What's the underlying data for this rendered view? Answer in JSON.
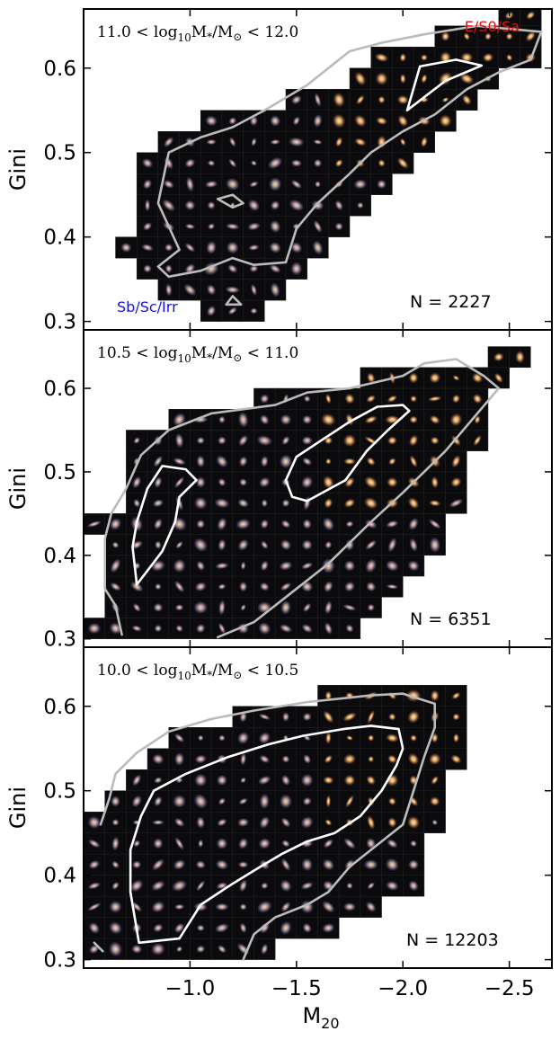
{
  "figure": {
    "xlabel": "M20",
    "ylabel": "Gini"
  },
  "chart_data": [
    {
      "type": "heatmap",
      "mass_range": "11.0 < log10 M*/M⊙ < 12.0",
      "count_label": "N = 2227",
      "late_type_label": "Sb/Sc/Irr",
      "early_type_label": "E/S0/Sa",
      "xlabel": "",
      "ylabel": "Gini",
      "xlim": [
        -0.5,
        -2.7
      ],
      "ylim": [
        0.29,
        0.67
      ],
      "x_ticks": [
        -1.0,
        -1.5,
        -2.0,
        -2.5
      ],
      "y_ticks": [
        0.3,
        0.4,
        0.5,
        0.6
      ],
      "bin_size": {
        "m20": 0.1,
        "gini": 0.025
      },
      "columns": [
        {
          "m20": -0.7,
          "gini_range": [
            0.375,
            0.4
          ]
        },
        {
          "m20": -0.8,
          "gini_range": [
            0.35,
            0.5
          ]
        },
        {
          "m20": -0.9,
          "gini_range": [
            0.325,
            0.525
          ]
        },
        {
          "m20": -1.0,
          "gini_range": [
            0.325,
            0.525
          ]
        },
        {
          "m20": -1.1,
          "gini_range": [
            0.3,
            0.55
          ]
        },
        {
          "m20": -1.2,
          "gini_range": [
            0.3,
            0.55
          ]
        },
        {
          "m20": -1.3,
          "gini_range": [
            0.3,
            0.55
          ]
        },
        {
          "m20": -1.4,
          "gini_range": [
            0.325,
            0.55
          ]
        },
        {
          "m20": -1.5,
          "gini_range": [
            0.35,
            0.575
          ]
        },
        {
          "m20": -1.6,
          "gini_range": [
            0.375,
            0.575
          ]
        },
        {
          "m20": -1.7,
          "gini_range": [
            0.4,
            0.575
          ]
        },
        {
          "m20": -1.8,
          "gini_range": [
            0.425,
            0.6
          ]
        },
        {
          "m20": -1.9,
          "gini_range": [
            0.45,
            0.625
          ]
        },
        {
          "m20": -2.0,
          "gini_range": [
            0.475,
            0.625
          ]
        },
        {
          "m20": -2.1,
          "gini_range": [
            0.5,
            0.625
          ]
        },
        {
          "m20": -2.2,
          "gini_range": [
            0.525,
            0.65
          ]
        },
        {
          "m20": -2.3,
          "gini_range": [
            0.55,
            0.65
          ]
        },
        {
          "m20": -2.4,
          "gini_range": [
            0.575,
            0.65
          ]
        },
        {
          "m20": -2.5,
          "gini_range": [
            0.6,
            0.675
          ]
        },
        {
          "m20": -2.6,
          "gini_range": [
            0.6,
            0.675
          ]
        }
      ],
      "contours": [
        {
          "level": "outer",
          "color": "#bbbbbb",
          "points": [
            [
              -1.35,
              0.55
            ],
            [
              -1.55,
              0.58
            ],
            [
              -1.65,
              0.6
            ],
            [
              -1.75,
              0.62
            ],
            [
              -1.9,
              0.63
            ],
            [
              -2.1,
              0.64
            ],
            [
              -2.35,
              0.65
            ],
            [
              -2.65,
              0.643
            ],
            [
              -2.6,
              0.61
            ],
            [
              -2.45,
              0.595
            ],
            [
              -2.3,
              0.575
            ],
            [
              -2.15,
              0.545
            ],
            [
              -2.0,
              0.525
            ],
            [
              -1.85,
              0.5
            ],
            [
              -1.75,
              0.475
            ],
            [
              -1.6,
              0.44
            ],
            [
              -1.5,
              0.41
            ],
            [
              -1.45,
              0.37
            ],
            [
              -1.3,
              0.367
            ],
            [
              -1.2,
              0.375
            ],
            [
              -1.05,
              0.36
            ],
            [
              -0.9,
              0.353
            ],
            [
              -0.85,
              0.365
            ],
            [
              -0.95,
              0.385
            ],
            [
              -0.85,
              0.44
            ],
            [
              -0.9,
              0.5
            ],
            [
              -1.05,
              0.518
            ],
            [
              -1.2,
              0.53
            ],
            [
              -1.35,
              0.55
            ]
          ]
        },
        {
          "level": "inner",
          "color": "#ffffff",
          "points": [
            [
              -2.02,
              0.55
            ],
            [
              -2.08,
              0.602
            ],
            [
              -2.25,
              0.61
            ],
            [
              -2.37,
              0.603
            ],
            [
              -2.2,
              0.585
            ],
            [
              -2.02,
              0.55
            ]
          ]
        },
        {
          "level": "outer",
          "color": "#bbbbbb",
          "points": [
            [
              -1.13,
              0.445
            ],
            [
              -1.2,
              0.435
            ],
            [
              -1.25,
              0.44
            ],
            [
              -1.2,
              0.45
            ],
            [
              -1.13,
              0.445
            ]
          ]
        },
        {
          "level": "outer",
          "color": "#bbbbbb",
          "points": [
            [
              -1.17,
              0.32
            ],
            [
              -1.2,
              0.33
            ],
            [
              -1.24,
              0.32
            ],
            [
              -1.17,
              0.32
            ]
          ]
        }
      ]
    },
    {
      "type": "heatmap",
      "mass_range": "10.5 < log10 M*/M⊙ < 11.0",
      "count_label": "N = 6351",
      "xlabel": "",
      "ylabel": "Gini",
      "xlim": [
        -0.5,
        -2.7
      ],
      "ylim": [
        0.29,
        0.67
      ],
      "x_ticks": [
        -1.0,
        -1.5,
        -2.0,
        -2.5
      ],
      "y_ticks": [
        0.3,
        0.4,
        0.5,
        0.6
      ],
      "bin_size": {
        "m20": 0.1,
        "gini": 0.025
      },
      "columns": [
        {
          "m20": -0.55,
          "gini_range": [
            0.3,
            0.325
          ]
        },
        {
          "m20": -0.55,
          "gini_range": [
            0.425,
            0.45
          ]
        },
        {
          "m20": -0.65,
          "gini_range": [
            0.3,
            0.45
          ]
        },
        {
          "m20": -0.75,
          "gini_range": [
            0.3,
            0.55
          ]
        },
        {
          "m20": -0.85,
          "gini_range": [
            0.3,
            0.55
          ]
        },
        {
          "m20": -0.95,
          "gini_range": [
            0.3,
            0.575
          ]
        },
        {
          "m20": -1.05,
          "gini_range": [
            0.3,
            0.575
          ]
        },
        {
          "m20": -1.15,
          "gini_range": [
            0.3,
            0.575
          ]
        },
        {
          "m20": -1.25,
          "gini_range": [
            0.3,
            0.575
          ]
        },
        {
          "m20": -1.35,
          "gini_range": [
            0.3,
            0.6
          ]
        },
        {
          "m20": -1.45,
          "gini_range": [
            0.3,
            0.6
          ]
        },
        {
          "m20": -1.55,
          "gini_range": [
            0.3,
            0.6
          ]
        },
        {
          "m20": -1.65,
          "gini_range": [
            0.3,
            0.6
          ]
        },
        {
          "m20": -1.75,
          "gini_range": [
            0.3,
            0.6
          ]
        },
        {
          "m20": -1.85,
          "gini_range": [
            0.325,
            0.625
          ]
        },
        {
          "m20": -1.95,
          "gini_range": [
            0.35,
            0.625
          ]
        },
        {
          "m20": -2.05,
          "gini_range": [
            0.375,
            0.625
          ]
        },
        {
          "m20": -2.15,
          "gini_range": [
            0.4,
            0.625
          ]
        },
        {
          "m20": -2.25,
          "gini_range": [
            0.45,
            0.625
          ]
        },
        {
          "m20": -2.35,
          "gini_range": [
            0.525,
            0.625
          ]
        },
        {
          "m20": -2.45,
          "gini_range": [
            0.6,
            0.65
          ]
        },
        {
          "m20": -2.55,
          "gini_range": [
            0.625,
            0.65
          ]
        }
      ],
      "contours": [
        {
          "level": "outer",
          "color": "#bbbbbb",
          "points": [
            [
              -0.68,
              0.305
            ],
            [
              -0.65,
              0.34
            ],
            [
              -0.6,
              0.36
            ],
            [
              -0.6,
              0.42
            ],
            [
              -0.63,
              0.45
            ],
            [
              -0.7,
              0.48
            ],
            [
              -0.77,
              0.52
            ],
            [
              -0.9,
              0.55
            ],
            [
              -1.1,
              0.57
            ],
            [
              -1.4,
              0.58
            ],
            [
              -1.55,
              0.595
            ],
            [
              -1.75,
              0.6
            ],
            [
              -2.0,
              0.615
            ],
            [
              -2.1,
              0.63
            ],
            [
              -2.25,
              0.635
            ],
            [
              -2.38,
              0.615
            ],
            [
              -2.45,
              0.6
            ],
            [
              -2.35,
              0.57
            ],
            [
              -2.2,
              0.525
            ],
            [
              -2.0,
              0.475
            ],
            [
              -1.85,
              0.44
            ],
            [
              -1.65,
              0.39
            ],
            [
              -1.45,
              0.35
            ],
            [
              -1.3,
              0.32
            ],
            [
              -1.13,
              0.302
            ]
          ]
        },
        {
          "level": "inner",
          "color": "#ffffff",
          "points": [
            [
              -0.75,
              0.365
            ],
            [
              -0.73,
              0.41
            ],
            [
              -0.75,
              0.44
            ],
            [
              -0.8,
              0.48
            ],
            [
              -0.87,
              0.507
            ],
            [
              -0.98,
              0.503
            ],
            [
              -1.03,
              0.49
            ],
            [
              -0.95,
              0.47
            ],
            [
              -0.93,
              0.44
            ],
            [
              -0.87,
              0.405
            ],
            [
              -0.75,
              0.365
            ]
          ]
        },
        {
          "level": "inner",
          "color": "#ffffff",
          "points": [
            [
              -1.45,
              0.49
            ],
            [
              -1.5,
              0.518
            ],
            [
              -1.63,
              0.54
            ],
            [
              -1.75,
              0.56
            ],
            [
              -1.88,
              0.578
            ],
            [
              -2.0,
              0.58
            ],
            [
              -2.03,
              0.573
            ],
            [
              -1.93,
              0.55
            ],
            [
              -1.83,
              0.525
            ],
            [
              -1.73,
              0.49
            ],
            [
              -1.55,
              0.465
            ],
            [
              -1.48,
              0.47
            ],
            [
              -1.45,
              0.49
            ]
          ]
        }
      ]
    },
    {
      "type": "heatmap",
      "mass_range": "10.0 < log10 M*/M⊙ < 10.5",
      "count_label": "N = 12203",
      "xlabel": "M20",
      "ylabel": "Gini",
      "xlim": [
        -0.5,
        -2.7
      ],
      "ylim": [
        0.29,
        0.67
      ],
      "x_ticks": [
        -1.0,
        -1.5,
        -2.0,
        -2.5
      ],
      "y_ticks": [
        0.3,
        0.4,
        0.5,
        0.6
      ],
      "bin_size": {
        "m20": 0.1,
        "gini": 0.025
      },
      "columns": [
        {
          "m20": -0.55,
          "gini_range": [
            0.3,
            0.475
          ]
        },
        {
          "m20": -0.65,
          "gini_range": [
            0.3,
            0.5
          ]
        },
        {
          "m20": -0.75,
          "gini_range": [
            0.3,
            0.525
          ]
        },
        {
          "m20": -0.85,
          "gini_range": [
            0.3,
            0.55
          ]
        },
        {
          "m20": -0.95,
          "gini_range": [
            0.3,
            0.575
          ]
        },
        {
          "m20": -1.05,
          "gini_range": [
            0.3,
            0.575
          ]
        },
        {
          "m20": -1.15,
          "gini_range": [
            0.3,
            0.575
          ]
        },
        {
          "m20": -1.25,
          "gini_range": [
            0.3,
            0.6
          ]
        },
        {
          "m20": -1.35,
          "gini_range": [
            0.3,
            0.6
          ]
        },
        {
          "m20": -1.45,
          "gini_range": [
            0.325,
            0.6
          ]
        },
        {
          "m20": -1.55,
          "gini_range": [
            0.325,
            0.6
          ]
        },
        {
          "m20": -1.65,
          "gini_range": [
            0.325,
            0.625
          ]
        },
        {
          "m20": -1.75,
          "gini_range": [
            0.35,
            0.625
          ]
        },
        {
          "m20": -1.85,
          "gini_range": [
            0.35,
            0.625
          ]
        },
        {
          "m20": -1.95,
          "gini_range": [
            0.375,
            0.625
          ]
        },
        {
          "m20": -2.05,
          "gini_range": [
            0.375,
            0.625
          ]
        },
        {
          "m20": -2.15,
          "gini_range": [
            0.45,
            0.625
          ]
        },
        {
          "m20": -2.25,
          "gini_range": [
            0.525,
            0.625
          ]
        }
      ],
      "contours": [
        {
          "level": "outer",
          "color": "#bbbbbb",
          "points": [
            [
              -0.58,
              0.46
            ],
            [
              -0.62,
              0.49
            ],
            [
              -0.65,
              0.52
            ],
            [
              -0.75,
              0.545
            ],
            [
              -0.9,
              0.57
            ],
            [
              -1.1,
              0.585
            ],
            [
              -1.3,
              0.595
            ],
            [
              -1.55,
              0.605
            ],
            [
              -1.85,
              0.613
            ],
            [
              -2.0,
              0.615
            ],
            [
              -2.15,
              0.603
            ],
            [
              -2.15,
              0.575
            ],
            [
              -2.1,
              0.54
            ],
            [
              -2.05,
              0.5
            ],
            [
              -2.0,
              0.46
            ],
            [
              -1.85,
              0.43
            ],
            [
              -1.75,
              0.41
            ],
            [
              -1.65,
              0.38
            ],
            [
              -1.55,
              0.365
            ],
            [
              -1.4,
              0.35
            ],
            [
              -1.3,
              0.33
            ],
            [
              -1.25,
              0.3
            ]
          ]
        },
        {
          "level": "inner",
          "color": "#ffffff",
          "points": [
            [
              -0.76,
              0.32
            ],
            [
              -0.72,
              0.38
            ],
            [
              -0.72,
              0.43
            ],
            [
              -0.77,
              0.47
            ],
            [
              -0.83,
              0.5
            ],
            [
              -0.98,
              0.52
            ],
            [
              -1.18,
              0.54
            ],
            [
              -1.37,
              0.555
            ],
            [
              -1.53,
              0.565
            ],
            [
              -1.72,
              0.573
            ],
            [
              -1.85,
              0.577
            ],
            [
              -1.98,
              0.573
            ],
            [
              -2.0,
              0.55
            ],
            [
              -1.97,
              0.53
            ],
            [
              -1.9,
              0.5
            ],
            [
              -1.8,
              0.47
            ],
            [
              -1.68,
              0.45
            ],
            [
              -1.55,
              0.44
            ],
            [
              -1.43,
              0.425
            ],
            [
              -1.33,
              0.41
            ],
            [
              -1.2,
              0.39
            ],
            [
              -1.05,
              0.365
            ],
            [
              -0.95,
              0.325
            ],
            [
              -0.76,
              0.32
            ]
          ]
        },
        {
          "level": "outer",
          "color": "#bbbbbb",
          "points": [
            [
              -0.55,
              0.32
            ],
            [
              -0.59,
              0.31
            ]
          ]
        }
      ]
    }
  ]
}
